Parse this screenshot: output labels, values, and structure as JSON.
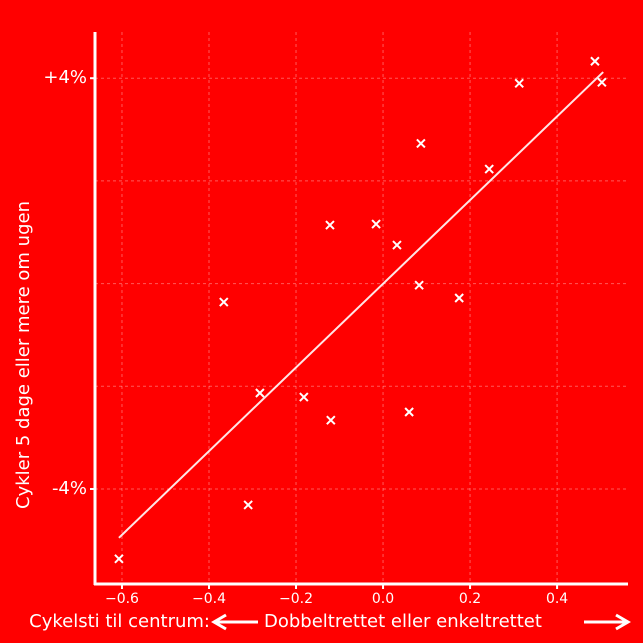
{
  "chart_data": {
    "type": "scatter",
    "y_label": "Cykler 5 dage eller mere om ugen",
    "x_label_left": "Cykelsti til centrum:",
    "x_label_right": "Dobbeltrettet eller enkeltrettet",
    "background": "#ff0000",
    "color": "#ffffff",
    "marker": "x",
    "grid": true,
    "x": [
      -0.607,
      -0.31,
      -0.366,
      -0.283,
      -0.182,
      -0.12,
      -0.122,
      -0.016,
      0.032,
      0.083,
      0.087,
      0.06,
      0.175,
      0.244,
      0.313,
      0.487,
      0.503
    ],
    "y": [
      -5.36,
      -4.31,
      -0.36,
      -2.13,
      -2.21,
      -2.66,
      1.14,
      1.16,
      0.75,
      -0.03,
      2.73,
      -2.5,
      -0.28,
      2.23,
      3.9,
      4.33,
      3.92
    ],
    "trendline": {
      "x": [
        -0.607,
        0.506
      ],
      "y": [
        -4.95,
        4.12
      ]
    },
    "xlim": [
      -0.662,
      0.563
    ],
    "ylim": [
      -5.85,
      4.9
    ],
    "xticks": [
      {
        "value": -0.6,
        "label": "−0.6"
      },
      {
        "value": -0.4,
        "label": "−0.4"
      },
      {
        "value": -0.2,
        "label": "−0.2"
      },
      {
        "value": 0,
        "label": "0.0"
      },
      0.2,
      0.4
    ],
    "yticks": [
      {
        "value": -4,
        "label": "-4%"
      },
      {
        "value": 4,
        "label": "+4%"
      }
    ],
    "ygrid": [
      -4,
      -2,
      0,
      2,
      4
    ]
  }
}
